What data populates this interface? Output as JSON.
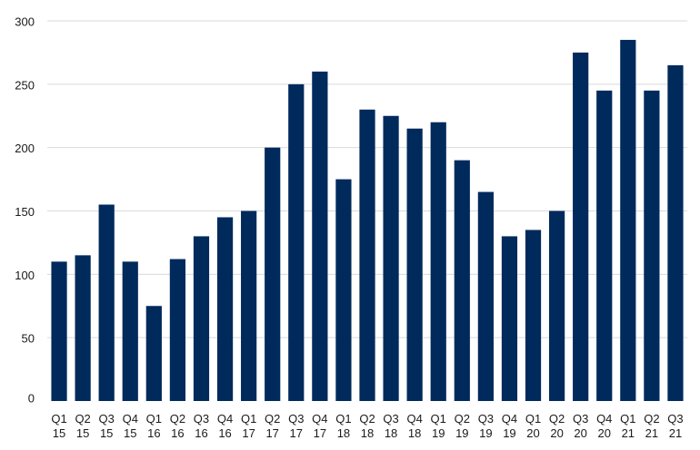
{
  "chart_data": {
    "type": "bar",
    "categories": [
      "Q1 15",
      "Q2 15",
      "Q3 15",
      "Q4 15",
      "Q1 16",
      "Q2 16",
      "Q3 16",
      "Q4 16",
      "Q1 17",
      "Q2 17",
      "Q3 17",
      "Q4 17",
      "Q1 18",
      "Q2 18",
      "Q3 18",
      "Q4 18",
      "Q1 19",
      "Q2 19",
      "Q3 19",
      "Q4 19",
      "Q1 20",
      "Q2 20",
      "Q3 20",
      "Q4 20",
      "Q1 21",
      "Q2 21",
      "Q3 21"
    ],
    "category_lines": [
      [
        "Q1",
        "15"
      ],
      [
        "Q2",
        "15"
      ],
      [
        "Q3",
        "15"
      ],
      [
        "Q4",
        "15"
      ],
      [
        "Q1",
        "16"
      ],
      [
        "Q2",
        "16"
      ],
      [
        "Q3",
        "16"
      ],
      [
        "Q4",
        "16"
      ],
      [
        "Q1",
        "17"
      ],
      [
        "Q2",
        "17"
      ],
      [
        "Q3",
        "17"
      ],
      [
        "Q4",
        "17"
      ],
      [
        "Q1",
        "18"
      ],
      [
        "Q2",
        "18"
      ],
      [
        "Q3",
        "18"
      ],
      [
        "Q4",
        "18"
      ],
      [
        "Q1",
        "19"
      ],
      [
        "Q2",
        "19"
      ],
      [
        "Q3",
        "19"
      ],
      [
        "Q4",
        "19"
      ],
      [
        "Q1",
        "20"
      ],
      [
        "Q2",
        "20"
      ],
      [
        "Q3",
        "20"
      ],
      [
        "Q4",
        "20"
      ],
      [
        "Q1",
        "21"
      ],
      [
        "Q2",
        "21"
      ],
      [
        "Q3",
        "21"
      ]
    ],
    "values": [
      110,
      115,
      155,
      110,
      75,
      112,
      130,
      145,
      150,
      200,
      250,
      260,
      175,
      230,
      225,
      215,
      220,
      190,
      165,
      130,
      135,
      150,
      275,
      245,
      285,
      245,
      265
    ],
    "title": "",
    "xlabel": "",
    "ylabel": "",
    "ylim": [
      0,
      300
    ],
    "yticks": [
      0,
      50,
      100,
      150,
      200,
      250,
      300
    ],
    "grid": true,
    "bar_color": "#002a5c",
    "grid_color": "#d9d9d9"
  }
}
